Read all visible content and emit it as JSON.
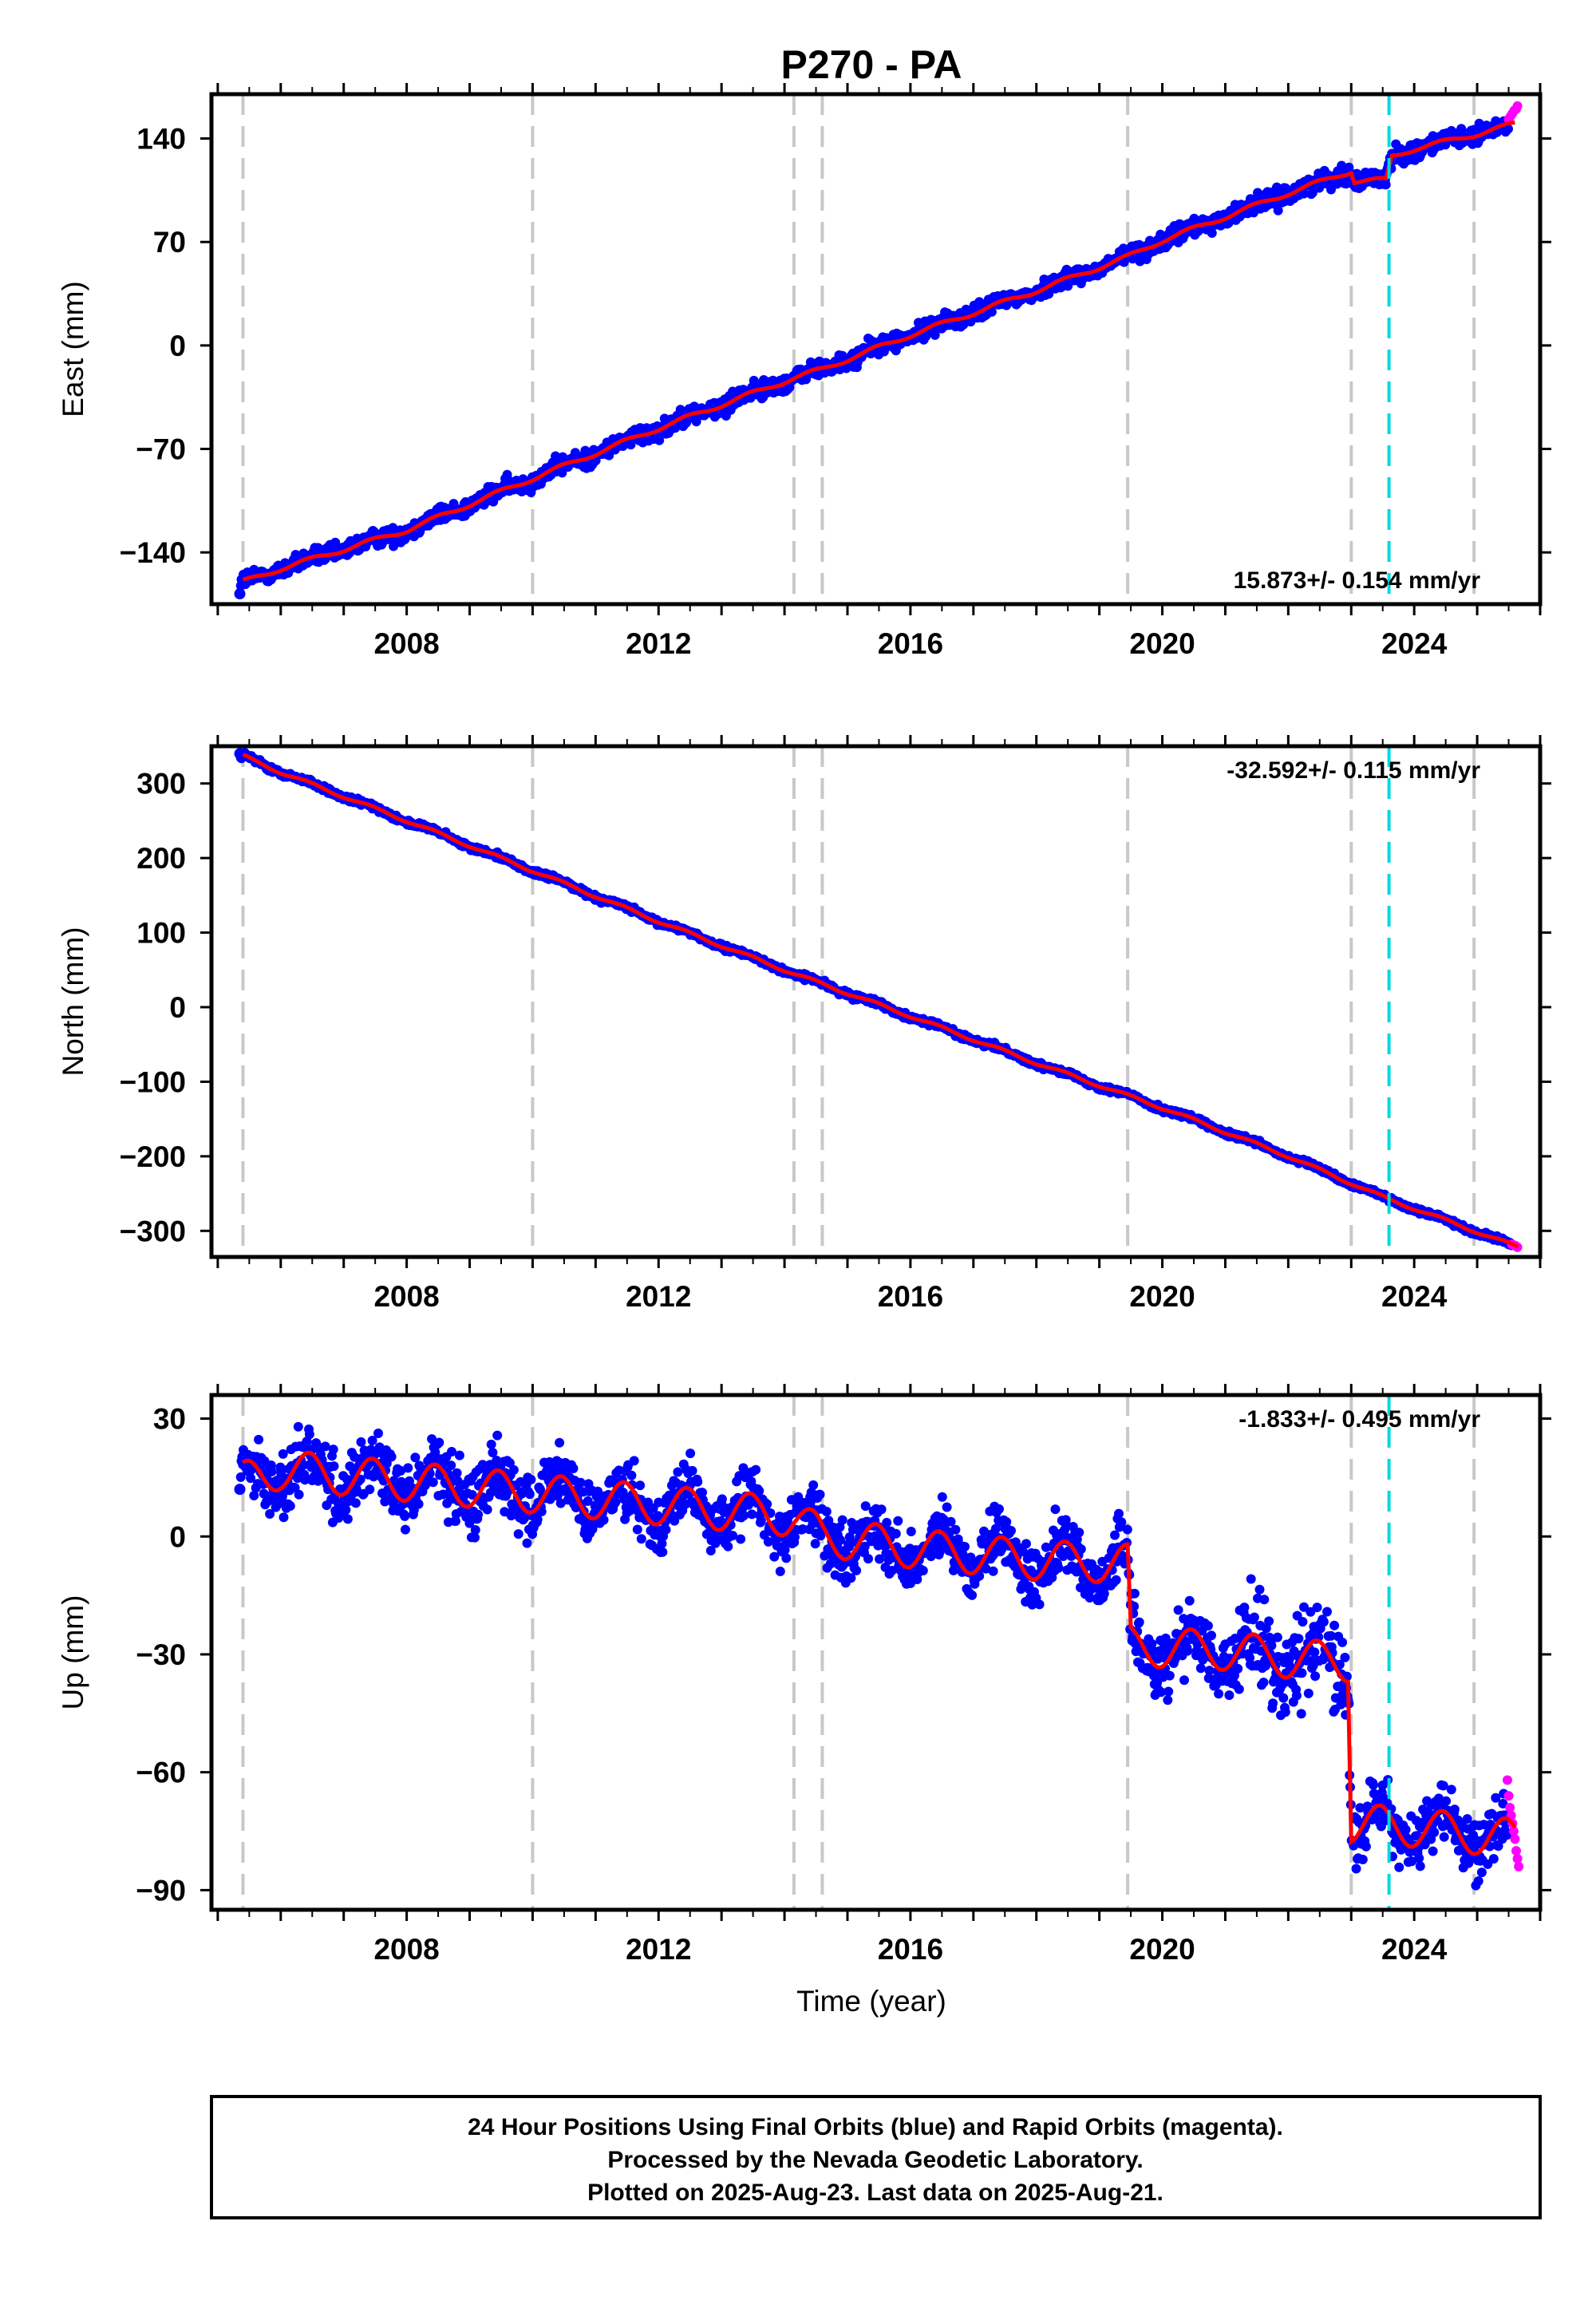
{
  "chart_data": {
    "type": "scatter",
    "title": "P270 - PA",
    "xlabel": "Time (year)",
    "xlim": [
      2004.9,
      2026.0
    ],
    "x_ticks": [
      2008,
      2012,
      2016,
      2020,
      2024
    ],
    "x_tick_labels": [
      "2008",
      "2012",
      "2016",
      "2020",
      "2024"
    ],
    "x_minor_tick_step": 0.5,
    "equipment_changes": [
      2005.4,
      2010.0,
      2014.15,
      2014.6,
      2019.45,
      2023.0,
      2024.95
    ],
    "earthquake_marker": 2023.6,
    "colors": {
      "final_orbits": "#0000ff",
      "rapid_orbits": "#ff00ff",
      "model": "#ff0000",
      "equipment_change": "#c8c8c8",
      "earthquake": "#00d8e0"
    },
    "series": [
      {
        "name": "East",
        "ylabel": "East (mm)",
        "ylim": [
          -175,
          170
        ],
        "y_ticks": [
          -140,
          -70,
          0,
          70,
          140
        ],
        "y_tick_labels": [
          "-140",
          "-70",
          "0",
          "70",
          "140"
        ],
        "rate_label": "15.873+/- 0.154 mm/yr",
        "rate_position": "bottom-right",
        "start": [
          2005.35,
          -168
        ],
        "model_knots": [
          [
            2005.4,
            -160
          ],
          [
            2006,
            -151
          ],
          [
            2008,
            -125
          ],
          [
            2010,
            -90
          ],
          [
            2012,
            -56
          ],
          [
            2014.15,
            -22
          ],
          [
            2014.6,
            -16
          ],
          [
            2016,
            7
          ],
          [
            2018,
            37
          ],
          [
            2019.45,
            60
          ],
          [
            2020,
            71
          ],
          [
            2022,
            103
          ],
          [
            2023.0,
            118
          ],
          [
            2023.05,
            111
          ],
          [
            2023.55,
            112
          ],
          [
            2023.65,
            128
          ],
          [
            2024,
            133
          ],
          [
            2025,
            143
          ],
          [
            2025.6,
            150
          ]
        ],
        "seasonal_amplitude": 1.5,
        "scatter_noise": 4,
        "rapid_points": [
          [
            2025.5,
            153
          ],
          [
            2025.53,
            155
          ],
          [
            2025.56,
            157
          ],
          [
            2025.59,
            159
          ],
          [
            2025.62,
            160
          ],
          [
            2025.64,
            162
          ]
        ]
      },
      {
        "name": "North",
        "ylabel": "North (mm)",
        "ylim": [
          -335,
          350
        ],
        "y_ticks": [
          -300,
          -200,
          -100,
          0,
          100,
          200,
          300
        ],
        "y_tick_labels": [
          "-300",
          "-200",
          "-100",
          "0",
          "100",
          "200",
          "300"
        ],
        "rate_label": "-32.592+/- 0.115 mm/yr",
        "rate_position": "top-right",
        "start": [
          2005.35,
          340
        ],
        "model_knots": [
          [
            2005.4,
            337
          ],
          [
            2006,
            315
          ],
          [
            2008,
            250
          ],
          [
            2010,
            183
          ],
          [
            2012,
            115
          ],
          [
            2014.15,
            45
          ],
          [
            2016,
            -12
          ],
          [
            2018,
            -75
          ],
          [
            2020,
            -135
          ],
          [
            2022,
            -200
          ],
          [
            2023.6,
            -258
          ],
          [
            2024,
            -270
          ],
          [
            2025.65,
            -322
          ]
        ],
        "seasonal_amplitude": 2,
        "scatter_noise": 2.5,
        "rapid_points": [
          [
            2025.55,
            -318
          ],
          [
            2025.58,
            -319
          ],
          [
            2025.61,
            -320
          ],
          [
            2025.64,
            -322
          ]
        ]
      },
      {
        "name": "Up",
        "ylabel": "Up (mm)",
        "ylim": [
          -95,
          36
        ],
        "y_ticks": [
          -90,
          -60,
          -30,
          0,
          30
        ],
        "y_tick_labels": [
          "-90",
          "-60",
          "-30",
          "0",
          "30"
        ],
        "rate_label": "-1.833+/- 0.495 mm/yr",
        "rate_position": "top-right",
        "start": [
          2005.35,
          12
        ],
        "model_knots": [
          [
            2005.4,
            14
          ],
          [
            2006,
            17
          ],
          [
            2008,
            14
          ],
          [
            2010,
            11
          ],
          [
            2012,
            8
          ],
          [
            2014.15,
            5
          ],
          [
            2014.6,
            0
          ],
          [
            2016,
            -3
          ],
          [
            2018,
            -6
          ],
          [
            2019.45,
            -7
          ],
          [
            2019.5,
            -28
          ],
          [
            2021,
            -29
          ],
          [
            2022,
            -31
          ],
          [
            2022.95,
            -32
          ],
          [
            2023.0,
            -73
          ],
          [
            2024,
            -74
          ],
          [
            2025.6,
            -77
          ]
        ],
        "seasonal_amplitude": 5,
        "scatter_noise": 5,
        "rapid_points": [
          [
            2025.48,
            -62
          ],
          [
            2025.5,
            -66
          ],
          [
            2025.52,
            -69
          ],
          [
            2025.54,
            -71
          ],
          [
            2025.56,
            -73
          ],
          [
            2025.58,
            -75
          ],
          [
            2025.6,
            -77
          ],
          [
            2025.62,
            -80
          ],
          [
            2025.64,
            -82
          ],
          [
            2025.66,
            -84
          ]
        ]
      }
    ]
  },
  "footer": {
    "line1": "24 Hour Positions Using Final Orbits (blue) and Rapid Orbits (magenta).",
    "line2": "Processed by the Nevada Geodetic Laboratory.",
    "line3": "Plotted on 2025-Aug-23. Last data on 2025-Aug-21."
  }
}
